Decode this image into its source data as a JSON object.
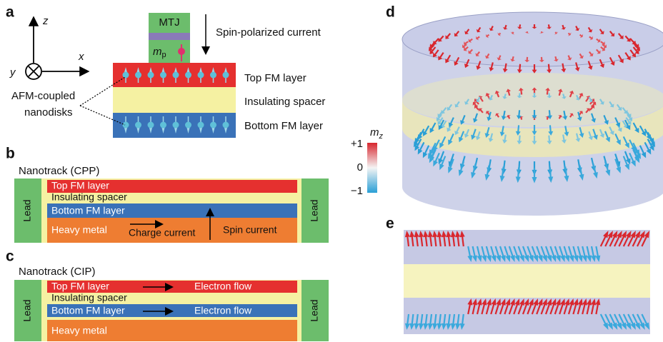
{
  "panel_a": {
    "label": "a",
    "axes": {
      "z": "z",
      "x": "x",
      "y": "y"
    },
    "mtj": "MTJ",
    "moment": {
      "symbol": "m",
      "subscript": "p"
    },
    "current": "Spin-polarized current",
    "layers": [
      "Top FM layer",
      "Insulating spacer",
      "Bottom FM layer"
    ],
    "nanodisks": [
      "AFM-coupled",
      "nanodisks"
    ]
  },
  "panel_b": {
    "label": "b",
    "title": "Nanotrack (CPP)",
    "layers": [
      "Top FM layer",
      "Insulating spacer",
      "Bottom FM layer",
      "Heavy metal"
    ],
    "charge_current": "Charge current",
    "spin_current": "Spin current",
    "leads": [
      "Lead",
      "Lead"
    ]
  },
  "panel_c": {
    "label": "c",
    "title": "Nanotrack (CIP)",
    "layers": [
      "Top FM layer",
      "Insulating spacer",
      "Bottom FM layer",
      "Heavy metal"
    ],
    "electron_flow": [
      "Electron flow",
      "Electron flow"
    ],
    "leads": [
      "Lead",
      "Lead"
    ]
  },
  "panel_d": {
    "label": "d",
    "colorbar": {
      "symbol": "m",
      "subscript": "z",
      "ticks": [
        "+1",
        "0",
        "−1"
      ]
    }
  },
  "panel_e": {
    "label": "e"
  }
}
